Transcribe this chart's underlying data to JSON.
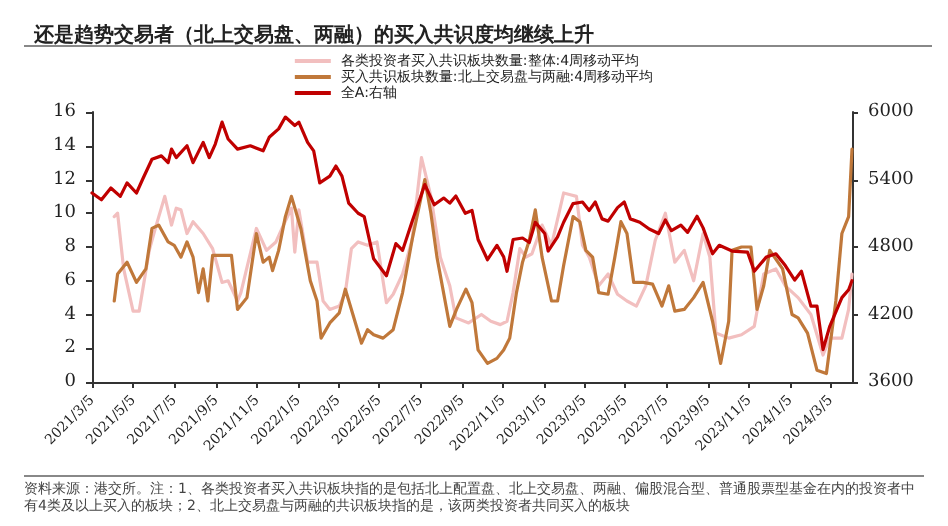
{
  "chart_data": {
    "type": "line",
    "title": "还是趋势交易者（北上交易盘、两融）的买入共识度均继续上升",
    "annotations": [
      "资料来源：港交所。注：1、各类投资者买入共识板块指的是包括北上配置盘、北上交易盘、两融、偏股混合型、普通股票型基金在内的投资者中有4类及以上买入的板块；2、北上交易盘与两融的共识板块指的是，该两类投资者共同买入的板块"
    ],
    "xlim": [
      "2021-03-05",
      "2024-04-06"
    ],
    "xticks": [
      {
        "value": "2021-03-05",
        "label": "2021/3/5"
      },
      {
        "value": "2021-05-05",
        "label": "2021/5/5"
      },
      {
        "value": "2021-07-05",
        "label": "2021/7/5"
      },
      {
        "value": "2021-09-05",
        "label": "2021/9/5"
      },
      {
        "value": "2021-11-05",
        "label": "2021/11/5"
      },
      {
        "value": "2022-01-05",
        "label": "2022/1/5"
      },
      {
        "value": "2022-03-05",
        "label": "2022/3/5"
      },
      {
        "value": "2022-05-05",
        "label": "2022/5/5"
      },
      {
        "value": "2022-07-05",
        "label": "2022/7/5"
      },
      {
        "value": "2022-09-05",
        "label": "2022/9/5"
      },
      {
        "value": "2022-11-05",
        "label": "2022/11/5"
      },
      {
        "value": "2023-01-05",
        "label": "2023/1/5"
      },
      {
        "value": "2023-03-05",
        "label": "2023/3/5"
      },
      {
        "value": "2023-05-05",
        "label": "2023/5/5"
      },
      {
        "value": "2023-07-05",
        "label": "2023/7/5"
      },
      {
        "value": "2023-09-05",
        "label": "2023/9/5"
      },
      {
        "value": "2023-11-05",
        "label": "2023/11/5"
      },
      {
        "value": "2024-01-05",
        "label": "2024/1/5"
      },
      {
        "value": "2024-03-05",
        "label": "2024/3/5"
      }
    ],
    "ylim": [
      0,
      16
    ],
    "yticks": [
      0,
      2,
      4,
      6,
      8,
      10,
      12,
      14,
      16
    ],
    "y2lim": [
      3600,
      6000
    ],
    "y2ticks": [
      3600,
      4200,
      4800,
      5400,
      6000
    ],
    "grid": false,
    "legend": "top",
    "marker": "none",
    "line_style": "solid",
    "series": [
      {
        "name": "各类投资者买入共识板块数量:整体:4周移动平均",
        "color": "#f2bfbf",
        "x": [
          "2021-04-07",
          "2021-04-12",
          "2021-04-21",
          "2021-05-05",
          "2021-05-14",
          "2021-05-19",
          "2021-05-29",
          "2021-06-07",
          "2021-06-21",
          "2021-07-01",
          "2021-07-08",
          "2021-07-15",
          "2021-07-24",
          "2021-08-02",
          "2021-08-17",
          "2021-08-31",
          "2021-09-14",
          "2021-09-23",
          "2021-10-07",
          "2021-10-12",
          "2021-11-04",
          "2021-11-19",
          "2021-12-03",
          "2021-12-12",
          "2021-12-26",
          "2021-12-31",
          "2022-01-06",
          "2022-01-19",
          "2022-02-02",
          "2022-02-11",
          "2022-02-21",
          "2022-03-07",
          "2022-03-16",
          "2022-03-25",
          "2022-04-04",
          "2022-04-18",
          "2022-05-02",
          "2022-05-16",
          "2022-05-26",
          "2022-06-09",
          "2022-06-23",
          "2022-07-07",
          "2022-07-21",
          "2022-08-04",
          "2022-08-18",
          "2022-08-27",
          "2022-09-15",
          "2022-10-04",
          "2022-10-18",
          "2022-11-01",
          "2022-11-11",
          "2022-11-20",
          "2022-11-30",
          "2022-12-09",
          "2022-12-18",
          "2023-01-02",
          "2023-01-16",
          "2023-02-03",
          "2023-02-13",
          "2023-02-22",
          "2023-03-03",
          "2023-03-13",
          "2023-03-27",
          "2023-04-10",
          "2023-04-24",
          "2023-05-08",
          "2023-05-22",
          "2023-06-05",
          "2023-06-19",
          "2023-07-04",
          "2023-07-18",
          "2023-08-01",
          "2023-08-15",
          "2023-08-29",
          "2023-09-08",
          "2023-09-17",
          "2023-10-06",
          "2023-10-25",
          "2023-11-13",
          "2023-11-27",
          "2023-12-15",
          "2023-12-29",
          "2024-01-17",
          "2024-02-05",
          "2024-02-23",
          "2024-03-04",
          "2024-03-22",
          "2024-04-01",
          "2024-04-06"
        ],
        "values": [
          9.8,
          10.0,
          6.7,
          4.2,
          4.2,
          5.4,
          7.8,
          9.1,
          11.0,
          9.3,
          10.3,
          10.2,
          8.8,
          9.5,
          8.8,
          7.9,
          5.9,
          6.0,
          4.8,
          5.3,
          9.1,
          7.8,
          8.3,
          9.1,
          10.3,
          7.7,
          10.2,
          7.1,
          7.1,
          4.8,
          4.3,
          4.5,
          5.3,
          7.9,
          8.3,
          8.1,
          8.3,
          4.7,
          5.2,
          6.4,
          8.4,
          13.3,
          11.0,
          7.4,
          5.7,
          3.8,
          3.5,
          4.0,
          3.6,
          3.4,
          3.6,
          5.3,
          7.9,
          7.4,
          7.6,
          9.3,
          8.1,
          11.2,
          11.1,
          11.0,
          8.1,
          7.4,
          5.7,
          6.4,
          5.2,
          4.8,
          4.5,
          5.7,
          8.4,
          10.0,
          7.1,
          7.8,
          6.0,
          8.8,
          7.4,
          2.9,
          2.6,
          2.8,
          3.3,
          6.4,
          6.7,
          5.7,
          5.0,
          4.0,
          1.6,
          2.6,
          2.6,
          4.3,
          6.4
        ]
      },
      {
        "name": "买入共识板块数量:北上交易盘与两融:4周移动平均",
        "color": "#c0783a",
        "x": [
          "2021-04-07",
          "2021-04-12",
          "2021-04-26",
          "2021-05-10",
          "2021-05-24",
          "2021-06-02",
          "2021-06-12",
          "2021-06-26",
          "2021-07-05",
          "2021-07-15",
          "2021-07-24",
          "2021-08-02",
          "2021-08-10",
          "2021-08-17",
          "2021-08-24",
          "2021-08-31",
          "2021-09-28",
          "2021-10-07",
          "2021-10-21",
          "2021-11-04",
          "2021-11-14",
          "2021-11-23",
          "2021-11-28",
          "2021-12-07",
          "2021-12-17",
          "2021-12-26",
          "2022-01-09",
          "2022-01-23",
          "2022-02-02",
          "2022-02-08",
          "2022-02-21",
          "2022-03-07",
          "2022-03-16",
          "2022-03-25",
          "2022-04-09",
          "2022-04-18",
          "2022-04-27",
          "2022-05-11",
          "2022-05-26",
          "2022-06-09",
          "2022-06-23",
          "2022-07-12",
          "2022-07-21",
          "2022-07-30",
          "2022-08-18",
          "2022-08-28",
          "2022-09-11",
          "2022-09-20",
          "2022-09-29",
          "2022-10-13",
          "2022-10-27",
          "2022-11-06",
          "2022-11-15",
          "2022-11-25",
          "2022-12-04",
          "2022-12-14",
          "2022-12-23",
          "2023-01-02",
          "2023-01-16",
          "2023-01-25",
          "2023-02-03",
          "2023-02-17",
          "2023-02-27",
          "2023-03-08",
          "2023-03-18",
          "2023-03-27",
          "2023-04-10",
          "2023-04-20",
          "2023-04-29",
          "2023-05-08",
          "2023-05-18",
          "2023-06-01",
          "2023-06-15",
          "2023-06-29",
          "2023-07-09",
          "2023-07-18",
          "2023-08-01",
          "2023-08-15",
          "2023-08-29",
          "2023-09-12",
          "2023-09-24",
          "2023-10-06",
          "2023-10-11",
          "2023-10-25",
          "2023-11-08",
          "2023-11-17",
          "2023-11-27",
          "2023-12-06",
          "2023-12-25",
          "2024-01-08",
          "2024-01-17",
          "2024-01-31",
          "2024-02-14",
          "2024-02-28",
          "2024-03-13",
          "2024-03-22",
          "2024-04-01",
          "2024-04-06"
        ],
        "values": [
          4.8,
          6.4,
          7.1,
          5.9,
          6.7,
          9.1,
          9.3,
          8.3,
          8.1,
          7.4,
          8.3,
          7.4,
          5.3,
          6.7,
          4.8,
          7.5,
          7.5,
          4.3,
          5.0,
          8.8,
          7.1,
          7.4,
          6.6,
          7.8,
          9.8,
          11.0,
          9.1,
          6.0,
          4.8,
          2.6,
          3.5,
          4.1,
          5.5,
          4.3,
          2.3,
          3.1,
          2.8,
          2.6,
          3.1,
          5.3,
          8.4,
          12.0,
          10.0,
          7.4,
          3.3,
          4.3,
          5.5,
          4.7,
          1.9,
          1.1,
          1.4,
          1.9,
          2.6,
          5.3,
          7.1,
          8.4,
          10.2,
          7.4,
          4.8,
          4.8,
          6.9,
          9.8,
          9.5,
          7.8,
          7.4,
          5.3,
          5.2,
          7.4,
          9.5,
          8.8,
          5.9,
          5.9,
          5.8,
          4.5,
          5.7,
          4.2,
          4.3,
          5.0,
          5.9,
          3.6,
          1.1,
          3.6,
          7.8,
          8.0,
          8.0,
          4.3,
          5.7,
          7.8,
          6.7,
          4.0,
          3.8,
          2.9,
          0.7,
          0.5,
          4.8,
          8.8,
          9.8,
          13.8
        ]
      },
      {
        "name": "全A:右轴",
        "color": "#c00000",
        "axis": "y2",
        "x": [
          "2021-03-05",
          "2021-03-19",
          "2021-04-02",
          "2021-04-16",
          "2021-04-26",
          "2021-05-10",
          "2021-05-19",
          "2021-06-02",
          "2021-06-16",
          "2021-06-26",
          "2021-07-01",
          "2021-07-08",
          "2021-07-24",
          "2021-08-02",
          "2021-08-17",
          "2021-08-26",
          "2021-09-04",
          "2021-09-14",
          "2021-09-23",
          "2021-10-07",
          "2021-10-26",
          "2021-11-14",
          "2021-11-23",
          "2021-12-07",
          "2021-12-17",
          "2021-12-31",
          "2022-01-06",
          "2022-01-19",
          "2022-01-28",
          "2022-02-06",
          "2022-02-21",
          "2022-03-02",
          "2022-03-11",
          "2022-03-21",
          "2022-04-04",
          "2022-04-13",
          "2022-04-27",
          "2022-05-16",
          "2022-05-30",
          "2022-06-09",
          "2022-06-23",
          "2022-07-12",
          "2022-07-26",
          "2022-08-09",
          "2022-08-18",
          "2022-08-27",
          "2022-09-10",
          "2022-09-20",
          "2022-09-29",
          "2022-10-13",
          "2022-10-27",
          "2022-11-06",
          "2022-11-11",
          "2022-11-20",
          "2022-12-04",
          "2022-12-14",
          "2022-12-23",
          "2023-01-06",
          "2023-01-11",
          "2023-01-25",
          "2023-02-03",
          "2023-02-17",
          "2023-03-03",
          "2023-03-13",
          "2023-03-22",
          "2023-04-01",
          "2023-04-10",
          "2023-04-24",
          "2023-05-04",
          "2023-05-13",
          "2023-05-27",
          "2023-06-10",
          "2023-06-24",
          "2023-07-04",
          "2023-07-13",
          "2023-07-27",
          "2023-08-06",
          "2023-08-20",
          "2023-08-29",
          "2023-09-12",
          "2023-09-22",
          "2023-10-11",
          "2023-11-03",
          "2023-11-13",
          "2023-12-01",
          "2023-12-15",
          "2023-12-29",
          "2024-01-12",
          "2024-01-22",
          "2024-02-05",
          "2024-02-14",
          "2024-02-23",
          "2024-03-04",
          "2024-03-22",
          "2024-04-01",
          "2024-04-06"
        ],
        "values": [
          5280,
          5220,
          5325,
          5250,
          5370,
          5280,
          5400,
          5580,
          5610,
          5550,
          5670,
          5595,
          5700,
          5550,
          5730,
          5595,
          5715,
          5910,
          5760,
          5670,
          5700,
          5655,
          5775,
          5850,
          5955,
          5880,
          5910,
          5730,
          5655,
          5370,
          5430,
          5520,
          5430,
          5190,
          5100,
          5070,
          4695,
          4545,
          4830,
          4770,
          5025,
          5355,
          5175,
          5235,
          5190,
          5253,
          5100,
          5125,
          4867,
          4687,
          4815,
          4712,
          4584,
          4867,
          4880,
          4840,
          5020,
          4920,
          4764,
          4890,
          5020,
          5186,
          5200,
          5125,
          5200,
          5050,
          5030,
          5150,
          5200,
          5050,
          5020,
          4960,
          4920,
          5040,
          4945,
          4995,
          4930,
          5073,
          4970,
          4740,
          4815,
          4764,
          4754,
          4584,
          4712,
          4740,
          4635,
          4506,
          4584,
          4275,
          4275,
          3888,
          4095,
          4350,
          4420,
          4500
        ]
      }
    ]
  }
}
